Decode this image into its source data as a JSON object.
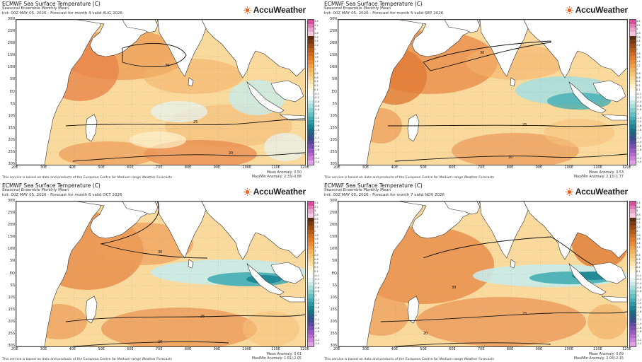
{
  "brand": {
    "name": "AccuWeather",
    "logo_icon": "sun-icon",
    "color": "#f26522"
  },
  "source_note": "This service is based on data and products of the European Centre for Medium-range Weather Forecasts",
  "axes": {
    "lat_labels": [
      "30N",
      "25N",
      "20N",
      "15N",
      "10N",
      "5N",
      "EQ",
      "5S",
      "10S",
      "15S",
      "20S",
      "25S",
      "30S"
    ],
    "lon_labels": [
      "20E",
      "30E",
      "40E",
      "50E",
      "60E",
      "70E",
      "80E",
      "90E",
      "100E",
      "110E",
      "120E"
    ]
  },
  "colorbar": {
    "ticks": [
      "3.4",
      "3.2",
      "3",
      "2.8",
      "2.6",
      "2.4",
      "2.2",
      "2",
      "1.8",
      "1.6",
      "1.4",
      "1.2",
      "1",
      "0.8",
      "0.6",
      "0.4",
      "0.2",
      "0.1",
      "-0.1",
      "-0.2",
      "-0.4",
      "-0.6",
      "-0.8",
      "-1",
      "-1.2",
      "-1.4",
      "-1.6",
      "-1.8",
      "-2",
      "-2.2",
      "-2.4",
      "-2.6",
      "-2.8",
      "-3",
      "-3.2",
      "-3.4"
    ],
    "colors": [
      "#d94f9e",
      "#e07cb5",
      "#eba4cb",
      "#f3c8dd",
      "#5a2a10",
      "#7a3a12",
      "#9c4a14",
      "#b85a18",
      "#d06a1c",
      "#e07a24",
      "#ea8c34",
      "#f0a048",
      "#f4b45e",
      "#f7c576",
      "#f9d48e",
      "#fbe2aa",
      "#fdf0cc",
      "#fffbe8",
      "#ffffff",
      "#e6f6f6",
      "#c8ebea",
      "#a8dede",
      "#86cfd0",
      "#64bfc2",
      "#44aeb4",
      "#2c9aa4",
      "#1c8593",
      "#1a7082",
      "#2a5d86",
      "#3a4c8e",
      "#5a4aa0",
      "#7a4fb2",
      "#9a58c2",
      "#b66acf",
      "#cc80da",
      "#e0a0e6"
    ]
  },
  "panels": [
    {
      "title": "ECMWF Sea Surface Temperature (C)",
      "subtitle": "Seasonal Ensemble Monthly Mean",
      "init_line": "Init: 00Z MAY 05, 2026 - Forecast for month 4 valid AUG 2026",
      "mean_anomaly": "Mean Anomaly: 0.50",
      "maxmin": "Max/Min Anomaly: 2.33/-0.88",
      "contours": [
        "30",
        "25",
        "20"
      ]
    },
    {
      "title": "ECMWF Sea Surface Temperature (C)",
      "subtitle": "Seasonal Ensemble Monthly Mean",
      "init_line": "Init: 00Z MAY 05, 2026 - Forecast for month 5 valid SEP 2026",
      "mean_anomaly": "Mean Anomaly: 0.53",
      "maxmin": "Max/Min Anomaly: 2.13/-1.77",
      "contours": [
        "30",
        "25",
        "20"
      ]
    },
    {
      "title": "ECMWF Sea Surface Temperature (C)",
      "subtitle": "Seasonal Ensemble Monthly Mean",
      "init_line": "Init: 00Z MAY 05, 2026 - Forecast for month 6 valid OCT 2026",
      "mean_anomaly": "Mean Anomaly: 0.61",
      "maxmin": "Max/Min Anomaly: 1.81/-2.05",
      "contours": [
        "30",
        "25",
        "20"
      ]
    },
    {
      "title": "ECMWF Sea Surface Temperature (C)",
      "subtitle": "Seasonal Ensemble Monthly Mean",
      "init_line": "Init: 00Z MAY 05, 2026 - Forecast for month 7 valid NOV 2026",
      "mean_anomaly": "Mean Anomaly: 0.69",
      "maxmin": "Max/Min Anomaly: 2.03/-2.15",
      "contours": [
        "30",
        "25",
        "20"
      ]
    }
  ]
}
